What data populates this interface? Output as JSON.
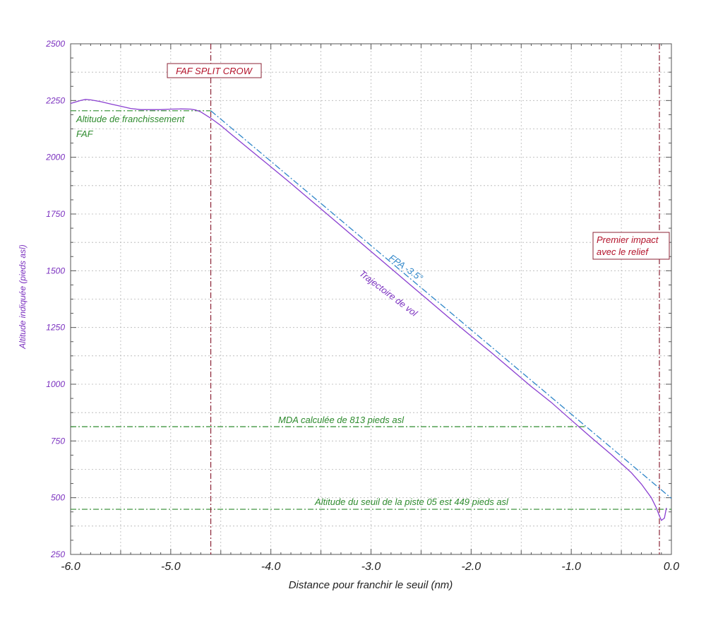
{
  "chart_data": {
    "type": "line",
    "title": "",
    "xlabel": "Distance pour franchir le seuil (nm)",
    "ylabel": "Altitude indiquée (pieds asl)",
    "xlim": [
      -6.0,
      0.0
    ],
    "ylim": [
      250,
      2500
    ],
    "x_ticks": [
      "-6.0",
      "-5.0",
      "-4.0",
      "-3.0",
      "-2.0",
      "-1.0",
      "0.0"
    ],
    "y_ticks": [
      "250",
      "500",
      "750",
      "1000",
      "1250",
      "1500",
      "1750",
      "2000",
      "2250",
      "2500"
    ],
    "grid": true,
    "series": [
      {
        "name": "Trajectoire de vol",
        "color": "#8a3fd1",
        "x": [
          -6.0,
          -5.9,
          -5.85,
          -5.8,
          -5.7,
          -5.6,
          -5.5,
          -5.4,
          -5.3,
          -5.2,
          -5.1,
          -5.0,
          -4.9,
          -4.8,
          -4.75,
          -4.7,
          -4.6,
          -4.5,
          -4.4,
          -4.2,
          -4.0,
          -3.8,
          -3.6,
          -3.4,
          -3.2,
          -3.0,
          -2.8,
          -2.6,
          -2.4,
          -2.2,
          -2.0,
          -1.8,
          -1.6,
          -1.4,
          -1.2,
          -1.0,
          -0.8,
          -0.6,
          -0.4,
          -0.3,
          -0.2,
          -0.15,
          -0.12,
          -0.1,
          -0.07,
          -0.05
        ],
        "y": [
          2237,
          2250,
          2255,
          2253,
          2245,
          2235,
          2225,
          2215,
          2210,
          2210,
          2210,
          2212,
          2213,
          2212,
          2208,
          2200,
          2172,
          2140,
          2103,
          2030,
          1958,
          1885,
          1810,
          1735,
          1660,
          1585,
          1510,
          1435,
          1360,
          1285,
          1212,
          1140,
          1065,
          990,
          920,
          842,
          765,
          690,
          610,
          560,
          500,
          455,
          420,
          400,
          410,
          455
        ]
      },
      {
        "name": "FPA -3.5°",
        "color": "#2f86c9",
        "x": [
          -4.6,
          0.0
        ],
        "y": [
          2205,
          497
        ]
      }
    ],
    "reference_lines": [
      {
        "type": "horizontal",
        "y": 2205,
        "x_range": [
          -6.0,
          -4.6
        ],
        "color": "#2e8b2e",
        "label": "Altitude de franchissement",
        "label2": "FAF"
      },
      {
        "type": "horizontal",
        "y": 813,
        "x_range": [
          -6.0,
          -0.85
        ],
        "color": "#2e8b2e",
        "label": "MDA calculée de 813 pieds asl"
      },
      {
        "type": "horizontal",
        "y": 449,
        "x_range": [
          -6.0,
          0.0
        ],
        "color": "#2e8b2e",
        "label": "Altitude du seuil de la piste 05 est 449 pieds asl"
      },
      {
        "type": "vertical",
        "x": -4.6,
        "color": "#8b2335",
        "label": "FAF SPLIT CROW"
      },
      {
        "type": "vertical",
        "x": -0.12,
        "color": "#8b2335",
        "label": "Premier impact",
        "label2": "avec le relief"
      }
    ]
  },
  "annotations": {
    "faf_split_crow": "FAF SPLIT CROW",
    "premier_impact_line1": "Premier impact",
    "premier_impact_line2": "avec le relief",
    "altitude_franchissement_line1": "Altitude de franchissement",
    "altitude_franchissement_line2": "FAF",
    "fpa": "FPA -3.5°",
    "trajectoire": "Trajectoire de vol",
    "mda": "MDA calculée de 813 pieds asl",
    "seuil": "Altitude du seuil de la piste 05 est 449 pieds asl"
  },
  "colors": {
    "flight_path": "#8a3fd1",
    "fpa": "#2f86c9",
    "reference_green": "#2e8b2e",
    "vertical_red": "#8b2335",
    "label_red": "#b3122a",
    "axis_purple": "#7a2fbf"
  }
}
